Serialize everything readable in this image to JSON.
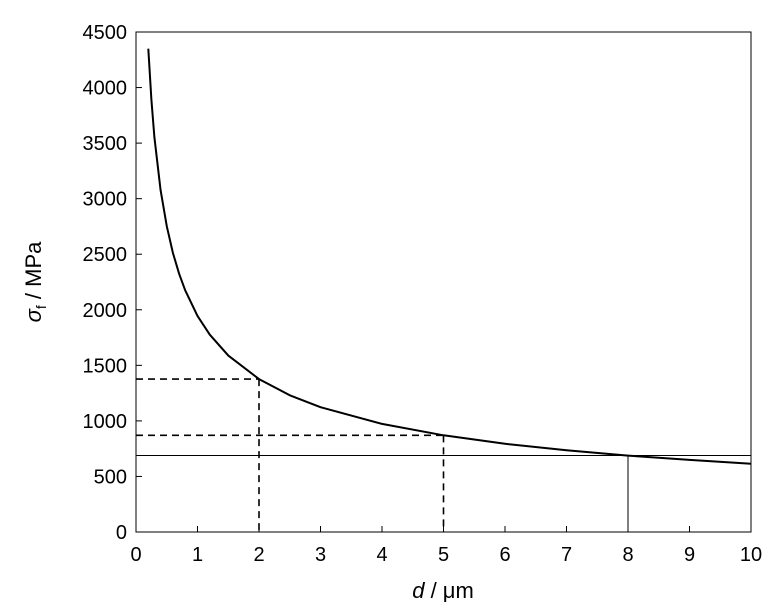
{
  "chart_data": {
    "type": "line",
    "title": "",
    "xlabel": {
      "var": "d",
      "unit": " / μm"
    },
    "ylabel": {
      "var": "σ",
      "sub": "f",
      "unit": " / MPa"
    },
    "xlim": [
      0,
      10
    ],
    "ylim": [
      0,
      4500
    ],
    "grid": false,
    "x_ticks": [
      0,
      1,
      2,
      3,
      4,
      5,
      6,
      7,
      8,
      9,
      10
    ],
    "y_ticks": [
      0,
      500,
      1000,
      1500,
      2000,
      2500,
      3000,
      3500,
      4000,
      4500
    ],
    "series": [
      {
        "x": [
          0.2,
          0.25,
          0.3,
          0.4,
          0.5,
          0.6,
          0.7,
          0.8,
          1.0,
          1.2,
          1.5,
          2.0,
          2.5,
          3.0,
          4.0,
          5.0,
          6.0,
          7.0,
          8.0,
          9.0,
          10.0
        ],
        "y": [
          4350,
          3891,
          3552,
          3076,
          2751,
          2512,
          2325,
          2175,
          1945,
          1776,
          1588,
          1376,
          1230,
          1123,
          973,
          870,
          794,
          735,
          688,
          649,
          615
        ]
      }
    ],
    "reference_lines": [
      {
        "style": "dashed",
        "x": 2,
        "y": 1376
      },
      {
        "style": "dashed",
        "x": 5,
        "y": 870
      },
      {
        "style": "solid",
        "x": 8,
        "y": 688
      }
    ]
  }
}
